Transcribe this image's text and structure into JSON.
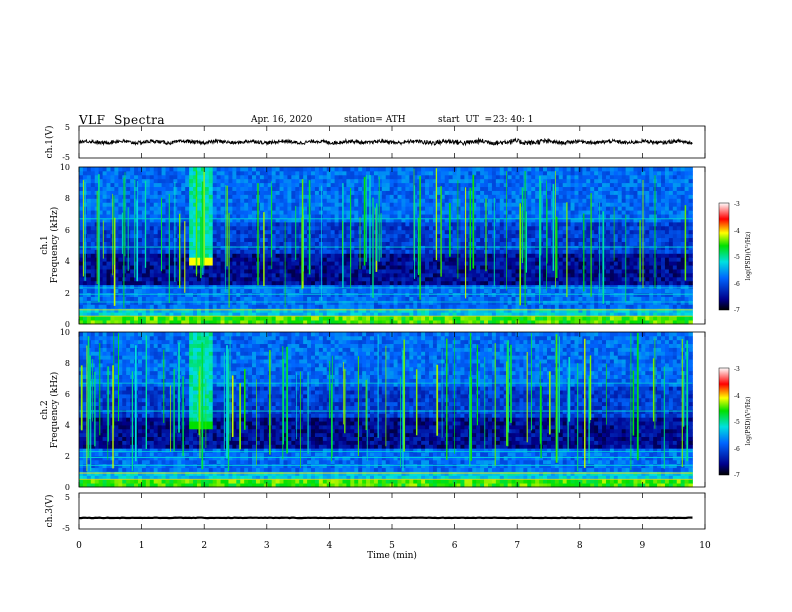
{
  "header": {
    "title": "VLF  Spectra",
    "date": "Apr. 16, 2020",
    "station": "station= ATH",
    "start_label": "start  UT  =",
    "start_value": "23: 40: 1"
  },
  "chart_data": [
    {
      "type": "line",
      "name": "ch1-waveform",
      "ylabel": "ch.1(V)",
      "ylim": [
        -5,
        5
      ],
      "yticks": [
        "5",
        "-5"
      ],
      "xlim": [
        0,
        10
      ],
      "trace": "noisy waveform around 0 V, amplitude about ±1 V, spanning 0 to 9.8 min"
    },
    {
      "type": "heatmap",
      "name": "ch1-spectrogram",
      "ylabel_channel": "ch.1",
      "ylabel": "Frequency  (kHz)",
      "ylim": [
        0,
        10
      ],
      "yticks": [
        "0",
        "2",
        "4",
        "6",
        "8",
        "10"
      ],
      "xlim": [
        0,
        10
      ],
      "x_extent": [
        0,
        9.8
      ],
      "colorbar": {
        "label": "log(PSD)(V²/Hz)",
        "range": [
          -7,
          -3
        ],
        "ticks": [
          "-3",
          "-4",
          "-5",
          "-6",
          "-7"
        ]
      },
      "features": [
        "broadband impulsive sferics throughout",
        "bright narrowband emission near 4 kHz at about 1.8-2.1 min",
        "steady horizontal line bands below 2.5 kHz"
      ]
    },
    {
      "type": "heatmap",
      "name": "ch2-spectrogram",
      "ylabel_channel": "ch.2",
      "ylabel": "Frequency  (kHz)",
      "ylim": [
        0,
        10
      ],
      "yticks": [
        "0",
        "2",
        "4",
        "6",
        "8",
        "10"
      ],
      "xlim": [
        0,
        10
      ],
      "x_extent": [
        0,
        9.8
      ],
      "colorbar": {
        "label": "log(PSD)(V²/Hz)",
        "range": [
          -7,
          -3
        ],
        "ticks": [
          "-3",
          "-4",
          "-5",
          "-6",
          "-7"
        ]
      },
      "features": [
        "broadband impulsive sferics throughout",
        "bright emission near 4 kHz at about 1.8-2.1 min",
        "steady horizontal line bands below 2.5 kHz"
      ]
    },
    {
      "type": "line",
      "name": "ch3-waveform",
      "ylabel": "ch.3(V)",
      "ylim": [
        -5,
        5
      ],
      "yticks": [
        "5",
        "-5"
      ],
      "xlim": [
        0,
        10
      ],
      "trace": "flat trace near -2 V, spanning 0 to 9.8 min"
    }
  ],
  "x_axis": {
    "label": "Time  (min)",
    "range": [
      0,
      10
    ],
    "ticks": [
      "0",
      "1",
      "2",
      "3",
      "4",
      "5",
      "6",
      "7",
      "8",
      "9",
      "10"
    ]
  }
}
